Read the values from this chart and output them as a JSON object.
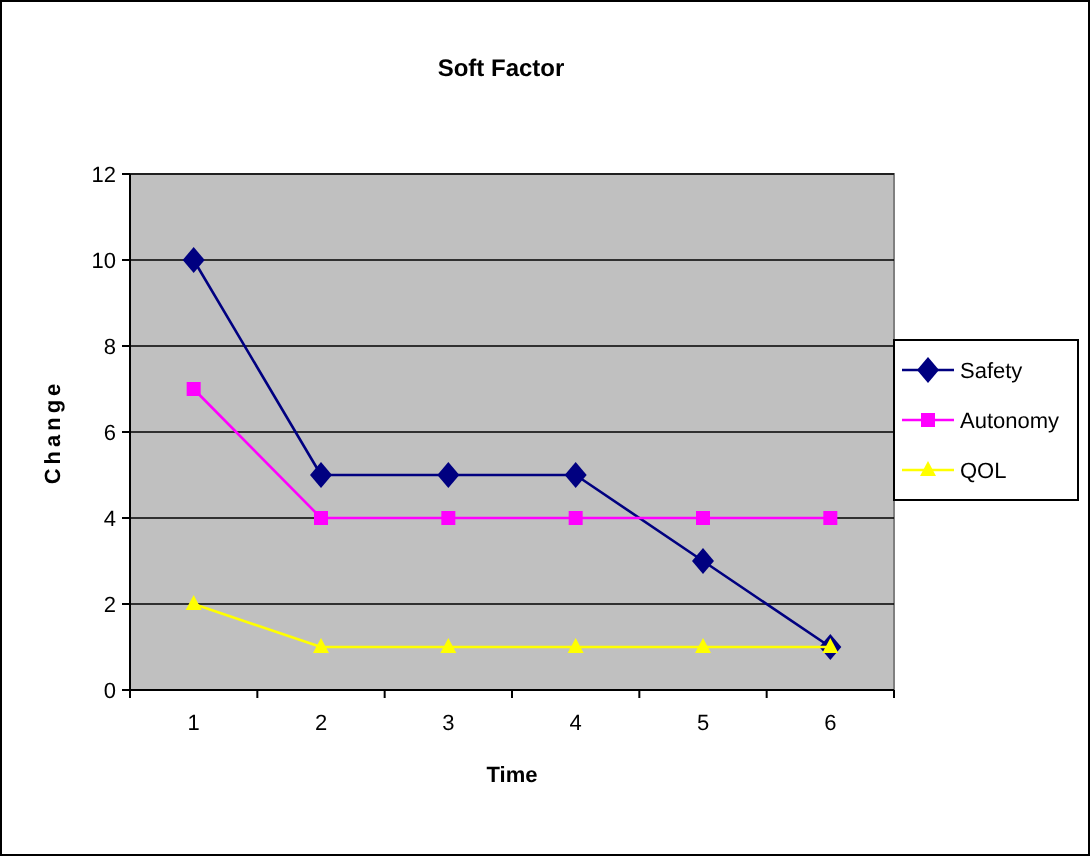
{
  "chart_data": {
    "type": "line",
    "title": "Soft Factor",
    "xlabel": "Time",
    "ylabel": "Change",
    "categories": [
      "1",
      "2",
      "3",
      "4",
      "5",
      "6"
    ],
    "series": [
      {
        "name": "Safety",
        "color": "#000080",
        "marker": "diamond",
        "values": [
          10,
          5,
          5,
          5,
          3,
          1
        ]
      },
      {
        "name": "Autonomy",
        "color": "#ff00ff",
        "marker": "square",
        "values": [
          7,
          4,
          4,
          4,
          4,
          4
        ]
      },
      {
        "name": "QOL",
        "color": "#ffff00",
        "marker": "triangle",
        "values": [
          2,
          1,
          1,
          1,
          1,
          1
        ]
      }
    ],
    "ylim": [
      0,
      12
    ],
    "yticks": [
      0,
      2,
      4,
      6,
      8,
      10,
      12
    ],
    "grid": "y",
    "legend": "right",
    "line_style": "solid"
  }
}
